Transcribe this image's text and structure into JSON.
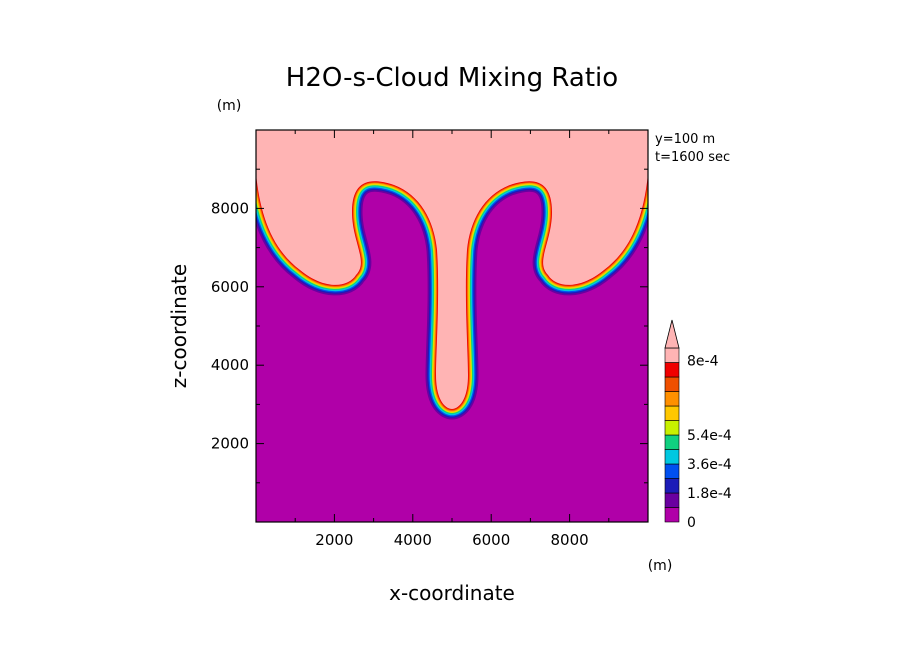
{
  "chart_data": {
    "type": "heatmap",
    "title": "H2O-s-Cloud Mixing Ratio",
    "xlabel": "x-coordinate",
    "ylabel": "z-coordinate",
    "x_unit": "(m)",
    "y_unit": "(m)",
    "xlim": [
      0,
      10000
    ],
    "ylim": [
      0,
      10000
    ],
    "x_ticks": [
      2000,
      4000,
      6000,
      8000
    ],
    "y_ticks": [
      2000,
      4000,
      6000,
      8000
    ],
    "x_tick_labels": [
      "2000",
      "4000",
      "6000",
      "8000"
    ],
    "y_tick_labels": [
      "2000",
      "4000",
      "6000",
      "8000"
    ],
    "annotations": [
      "y=100 m",
      "t=1600 sec"
    ],
    "colorbar": {
      "levels": [
        0,
        9e-05,
        0.00018,
        0.00027,
        0.00036,
        0.00045,
        0.00054,
        0.00063,
        0.00072,
        0.0008
      ],
      "tick_values": [
        0,
        0.00018,
        0.00036,
        0.00054,
        0.0008
      ],
      "tick_labels": [
        "0",
        "1.8e-4",
        "3.6e-4",
        "5.4e-4",
        "8e-4"
      ],
      "colors": [
        "#b000a8",
        "#6a00a0",
        "#1c1cb8",
        "#0050f0",
        "#00c8e0",
        "#10d080",
        "#c8f000",
        "#ffc800",
        "#ff9000",
        "#f05000",
        "#f00000",
        "#ffb4b4"
      ],
      "extend": "max"
    },
    "fields": {
      "background_value": 0,
      "core_value": 0.0008,
      "features": [
        "mushroom-cap cloud spanning full x range above ~6000 m",
        "central stem down to ~2900 m at x=5000",
        "curled edges with gradients near x~3700 and x~6300"
      ]
    }
  }
}
